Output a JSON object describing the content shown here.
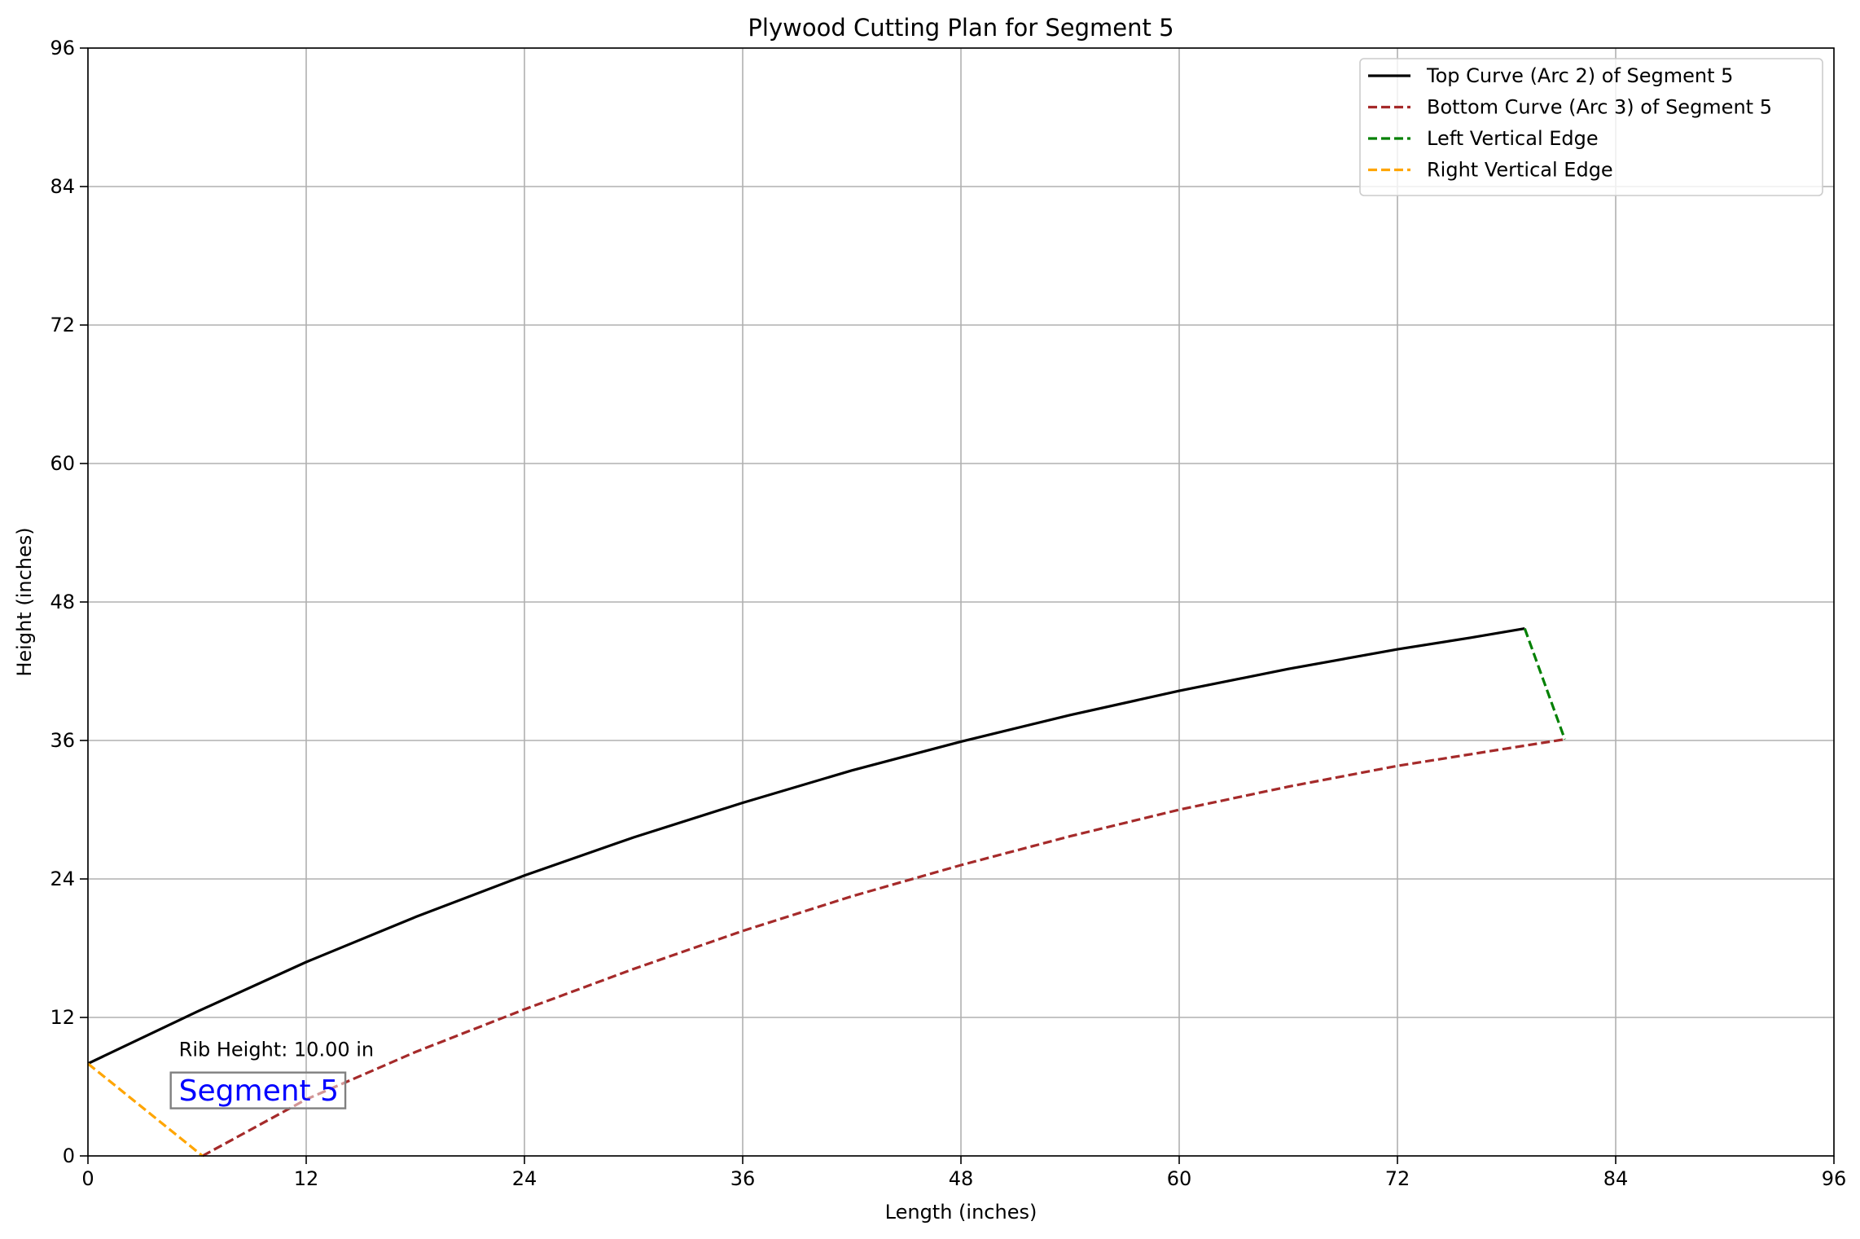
{
  "chart_data": {
    "type": "line",
    "title": "Plywood Cutting Plan for Segment 5",
    "xlabel": "Length (inches)",
    "ylabel": "Height (inches)",
    "xlim": [
      0,
      96
    ],
    "ylim": [
      0,
      96
    ],
    "xticks": [
      0,
      12,
      24,
      36,
      48,
      60,
      72,
      84,
      96
    ],
    "yticks": [
      0,
      12,
      24,
      36,
      48,
      60,
      72,
      84,
      96
    ],
    "xtick_labels": [
      "0",
      "12",
      "24",
      "36",
      "48",
      "60",
      "72",
      "84",
      "96"
    ],
    "ytick_labels": [
      "0",
      "12",
      "24",
      "36",
      "48",
      "60",
      "72",
      "84",
      "96"
    ],
    "grid": true,
    "legend_position": "top-right",
    "series": [
      {
        "name": "Top Curve (Arc 2) of Segment 5",
        "color": "#000000",
        "style": "solid",
        "x": [
          0,
          6,
          12,
          18,
          24,
          30,
          36,
          42,
          48,
          54,
          60,
          66,
          72,
          76,
          79
        ],
        "y": [
          8.0,
          12.5,
          16.8,
          20.7,
          24.3,
          27.6,
          30.6,
          33.4,
          35.9,
          38.2,
          40.3,
          42.2,
          43.9,
          44.9,
          45.7
        ]
      },
      {
        "name": "Bottom Curve (Arc 3) of Segment 5",
        "color": "#a52a2a",
        "style": "dashed",
        "x": [
          6.3,
          12,
          18,
          24,
          30,
          36,
          42,
          48,
          54,
          60,
          66,
          72,
          78,
          81.2
        ],
        "y": [
          0.0,
          4.9,
          9.0,
          12.7,
          16.2,
          19.5,
          22.5,
          25.2,
          27.7,
          30.0,
          32.0,
          33.8,
          35.3,
          36.1
        ]
      },
      {
        "name": "Left Vertical Edge",
        "color": "#008000",
        "style": "dashed",
        "x": [
          79,
          81.2
        ],
        "y": [
          45.7,
          36.1
        ]
      },
      {
        "name": "Right Vertical Edge",
        "color": "#ffa500",
        "style": "dashed",
        "x": [
          0,
          6.3
        ],
        "y": [
          8.0,
          0.0
        ]
      }
    ],
    "annotations": [
      {
        "text": "Rib Height: 10.00 in",
        "x": 5,
        "y": 9.2,
        "color": "#000000",
        "boxed": false
      },
      {
        "text": "Segment 5",
        "x": 5,
        "y": 5.7,
        "color": "#0000ff",
        "boxed": true
      }
    ]
  }
}
